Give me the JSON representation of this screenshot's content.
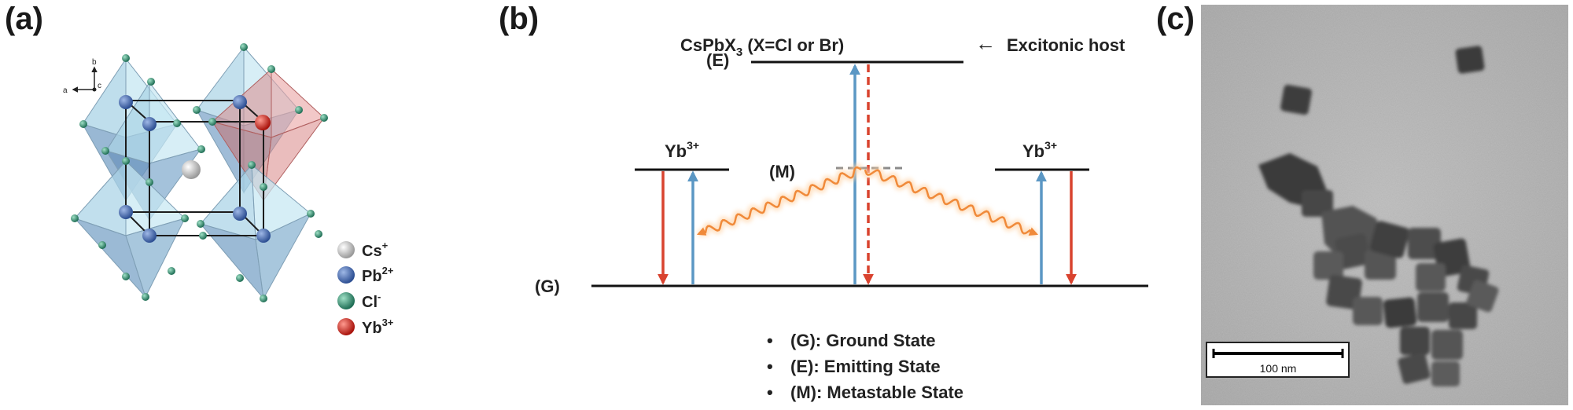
{
  "panels": {
    "a": {
      "label": "(a)"
    },
    "b": {
      "label": "(b)"
    },
    "c": {
      "label": "(c)"
    }
  },
  "crystal": {
    "axes": {
      "a": "a",
      "b": "b",
      "c": "c"
    },
    "legend": [
      {
        "symbol": "Cs",
        "charge": "+",
        "color": "#c9c9c9"
      },
      {
        "symbol": "Pb",
        "charge": "2+",
        "color": "#3e64a8"
      },
      {
        "symbol": "Cl",
        "charge": "-",
        "color": "#2e8a6e"
      },
      {
        "symbol": "Yb",
        "charge": "3+",
        "color": "#d8261d"
      }
    ]
  },
  "energy": {
    "host_formula_base": "CsPbX",
    "host_formula_sub": "3",
    "host_formula_rest": " (X=Cl or Br)",
    "host_arrow": "←",
    "host_note": "Excitonic host",
    "level_E": "(E)",
    "level_G": "(G)",
    "level_M": "(M)",
    "yb_base": "Yb",
    "yb_sup": "3+",
    "notes": [
      {
        "bullet": "•",
        "text": "(G): Ground State"
      },
      {
        "bullet": "•",
        "text": "(E): Emitting State"
      },
      {
        "bullet": "•",
        "text": "(M): Metastable State"
      }
    ],
    "colors": {
      "up": "#5b97c4",
      "down": "#d9432f",
      "wave": "#f08a3a"
    }
  },
  "tem": {
    "scale_label": "100 nm"
  }
}
